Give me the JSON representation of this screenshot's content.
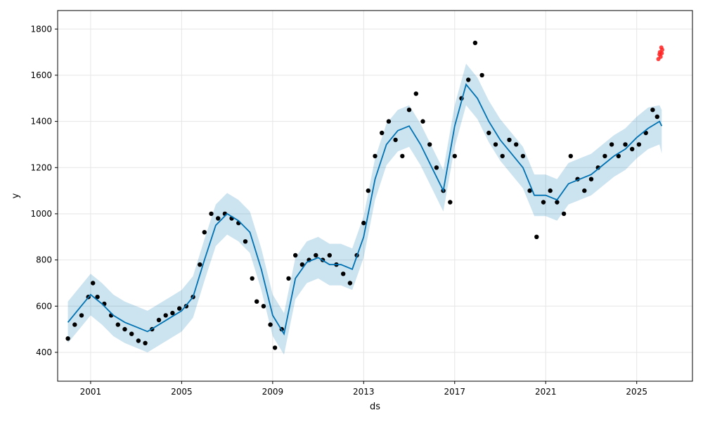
{
  "chart_data": {
    "type": "scatter",
    "title": "",
    "xlabel": "ds",
    "ylabel": "y",
    "xlim": [
      1999.55,
      2027.45
    ],
    "ylim": [
      275,
      1880
    ],
    "grid": true,
    "x_ticks": [
      2001,
      2005,
      2009,
      2013,
      2017,
      2021,
      2025
    ],
    "y_ticks": [
      400,
      600,
      800,
      1000,
      1200,
      1400,
      1600,
      1800
    ],
    "colors": {
      "observed": "#000000",
      "forecast": "#0072b2",
      "interval": "#0072b2",
      "anomaly": "#ff2222"
    },
    "series": [
      {
        "kind": "observed-points",
        "x": [
          2000.0,
          2000.3,
          2000.6,
          2000.9,
          2001.1,
          2001.3,
          2001.6,
          2001.9,
          2002.2,
          2002.5,
          2002.8,
          2003.1,
          2003.4,
          2003.7,
          2004.0,
          2004.3,
          2004.6,
          2004.9,
          2005.2,
          2005.5,
          2005.8,
          2006.0,
          2006.3,
          2006.6,
          2006.9,
          2007.2,
          2007.5,
          2007.8,
          2008.1,
          2008.3,
          2008.6,
          2008.9,
          2009.1,
          2009.4,
          2009.7,
          2010.0,
          2010.3,
          2010.6,
          2010.9,
          2011.2,
          2011.5,
          2011.8,
          2012.1,
          2012.4,
          2012.7,
          2013.0,
          2013.2,
          2013.5,
          2013.8,
          2014.1,
          2014.4,
          2014.7,
          2015.0,
          2015.3,
          2015.6,
          2015.9,
          2016.2,
          2016.5,
          2016.8,
          2017.0,
          2017.3,
          2017.6,
          2017.9,
          2018.2,
          2018.5,
          2018.8,
          2019.1,
          2019.4,
          2019.7,
          2020.0,
          2020.3,
          2020.6,
          2020.9,
          2021.2,
          2021.5,
          2021.8,
          2022.1,
          2022.4,
          2022.7,
          2023.0,
          2023.3,
          2023.6,
          2023.9,
          2024.2,
          2024.5,
          2024.8,
          2025.1,
          2025.4,
          2025.7,
          2025.9
        ],
        "y": [
          460,
          520,
          560,
          640,
          700,
          640,
          610,
          560,
          520,
          500,
          480,
          450,
          440,
          500,
          540,
          560,
          570,
          590,
          600,
          640,
          780,
          920,
          1000,
          980,
          1000,
          980,
          960,
          880,
          720,
          620,
          600,
          520,
          420,
          500,
          720,
          820,
          780,
          800,
          820,
          800,
          820,
          780,
          740,
          700,
          820,
          960,
          1100,
          1250,
          1350,
          1400,
          1320,
          1250,
          1450,
          1520,
          1400,
          1300,
          1200,
          1100,
          1050,
          1250,
          1500,
          1580,
          1740,
          1600,
          1350,
          1300,
          1250,
          1320,
          1300,
          1250,
          1100,
          900,
          1050,
          1100,
          1050,
          1000,
          1250,
          1150,
          1100,
          1150,
          1200,
          1250,
          1300,
          1250,
          1300,
          1280,
          1300,
          1350,
          1450,
          1420
        ]
      },
      {
        "kind": "forecast-line",
        "x": [
          2000.0,
          2000.5,
          2001.0,
          2001.5,
          2002.0,
          2002.5,
          2003.0,
          2003.5,
          2004.0,
          2004.5,
          2005.0,
          2005.5,
          2006.0,
          2006.5,
          2007.0,
          2007.5,
          2008.0,
          2008.5,
          2009.0,
          2009.5,
          2010.0,
          2010.5,
          2011.0,
          2011.5,
          2012.0,
          2012.5,
          2013.0,
          2013.5,
          2014.0,
          2014.5,
          2015.0,
          2015.5,
          2016.0,
          2016.5,
          2017.0,
          2017.5,
          2018.0,
          2018.5,
          2019.0,
          2019.5,
          2020.0,
          2020.5,
          2021.0,
          2021.5,
          2022.0,
          2022.5,
          2023.0,
          2023.5,
          2024.0,
          2024.5,
          2025.0,
          2025.5,
          2026.0,
          2026.1
        ],
        "y": [
          530,
          590,
          650,
          610,
          560,
          530,
          510,
          490,
          520,
          550,
          580,
          640,
          800,
          950,
          1000,
          970,
          920,
          760,
          560,
          480,
          720,
          790,
          810,
          780,
          780,
          760,
          900,
          1150,
          1300,
          1360,
          1380,
          1300,
          1200,
          1100,
          1380,
          1560,
          1500,
          1400,
          1320,
          1260,
          1200,
          1080,
          1080,
          1060,
          1130,
          1150,
          1170,
          1210,
          1250,
          1280,
          1330,
          1370,
          1400,
          1380
        ]
      },
      {
        "kind": "uncertainty-interval",
        "x": [
          2000.0,
          2000.5,
          2001.0,
          2001.5,
          2002.0,
          2002.5,
          2003.0,
          2003.5,
          2004.0,
          2004.5,
          2005.0,
          2005.5,
          2006.0,
          2006.5,
          2007.0,
          2007.5,
          2008.0,
          2008.5,
          2009.0,
          2009.5,
          2010.0,
          2010.5,
          2011.0,
          2011.5,
          2012.0,
          2012.5,
          2013.0,
          2013.5,
          2014.0,
          2014.5,
          2015.0,
          2015.5,
          2016.0,
          2016.5,
          2017.0,
          2017.5,
          2018.0,
          2018.5,
          2019.0,
          2019.5,
          2020.0,
          2020.5,
          2021.0,
          2021.5,
          2022.0,
          2022.5,
          2023.0,
          2023.5,
          2024.0,
          2024.5,
          2025.0,
          2025.5,
          2026.0,
          2026.1
        ],
        "lower": [
          440,
          500,
          560,
          520,
          470,
          440,
          420,
          400,
          430,
          460,
          490,
          550,
          710,
          860,
          910,
          880,
          830,
          670,
          470,
          390,
          630,
          700,
          720,
          690,
          690,
          670,
          810,
          1060,
          1210,
          1270,
          1290,
          1210,
          1110,
          1010,
          1290,
          1470,
          1410,
          1310,
          1230,
          1170,
          1110,
          990,
          990,
          970,
          1040,
          1060,
          1080,
          1120,
          1160,
          1190,
          1240,
          1280,
          1300,
          1260
        ],
        "upper": [
          620,
          680,
          740,
          700,
          650,
          620,
          600,
          580,
          610,
          640,
          670,
          730,
          890,
          1040,
          1090,
          1060,
          1010,
          850,
          650,
          570,
          810,
          880,
          900,
          870,
          870,
          850,
          990,
          1240,
          1390,
          1450,
          1470,
          1390,
          1290,
          1190,
          1470,
          1650,
          1590,
          1490,
          1410,
          1350,
          1290,
          1170,
          1170,
          1150,
          1220,
          1240,
          1260,
          1300,
          1340,
          1370,
          1420,
          1460,
          1470,
          1450
        ]
      },
      {
        "kind": "anomaly-points",
        "x": [
          2025.95,
          2026.0,
          2026.02,
          2026.05,
          2026.08,
          2026.1,
          2026.12
        ],
        "y": [
          1670,
          1690,
          1700,
          1680,
          1720,
          1695,
          1710
        ]
      }
    ]
  }
}
